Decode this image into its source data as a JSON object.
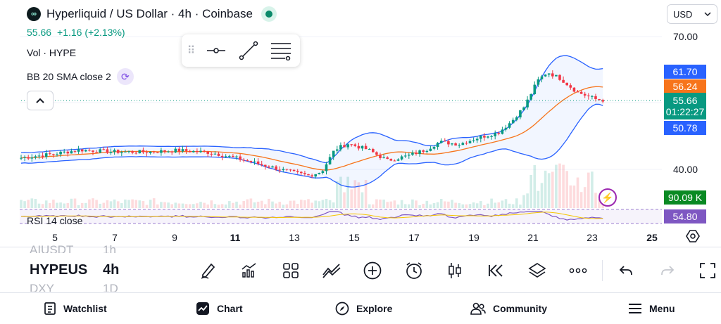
{
  "header": {
    "title": "Hyperliquid / US Dollar · 4h · Coinbase",
    "logo_glyph": "∞",
    "last_price": "55.66",
    "change": "+1.16 (+2.13%)",
    "currency": "USD"
  },
  "legends": {
    "volume": "Vol · HYPE",
    "bollinger": "BB 20 SMA close 2",
    "rsi": "RSI 14 close"
  },
  "price_axis": {
    "labels": [
      "70.00",
      "40.00"
    ],
    "tags": {
      "bb_upper": {
        "value": "61.70",
        "color": "#2962ff"
      },
      "bb_basis": {
        "value": "56.24",
        "color": "#f7741b"
      },
      "last": {
        "value": "55.66",
        "countdown": "01:22:27",
        "color": "#089981"
      },
      "bb_lower": {
        "value": "50.78",
        "color": "#2962ff"
      },
      "volume": {
        "value": "90.09 K",
        "color": "#0a8a23"
      },
      "rsi": {
        "value": "54.80",
        "color": "#7e57c2"
      }
    }
  },
  "date_axis": [
    "5",
    "7",
    "9",
    "11",
    "13",
    "15",
    "17",
    "19",
    "21",
    "23",
    "25"
  ],
  "watchlist": {
    "previous": {
      "symbol": "AIUSDT",
      "interval": "1h"
    },
    "current": {
      "symbol": "HYPEUS",
      "interval": "4h"
    },
    "next": {
      "symbol": "DXY",
      "interval": "1D"
    }
  },
  "toolbar_icons": [
    "pencil-icon",
    "indicators-icon",
    "layouts-icon",
    "compare-icon",
    "add-icon",
    "alert-clock-icon",
    "candle-type-icon",
    "replay-icon",
    "layers-icon",
    "more-icon",
    "undo-icon",
    "redo-icon",
    "fullscreen-icon"
  ],
  "bottom_nav": [
    {
      "label": "Watchlist",
      "icon": "watchlist-icon"
    },
    {
      "label": "Chart",
      "icon": "chart-icon"
    },
    {
      "label": "Explore",
      "icon": "compass-icon"
    },
    {
      "label": "Community",
      "icon": "community-icon"
    },
    {
      "label": "Menu",
      "icon": "menu-icon"
    }
  ],
  "colors": {
    "up": "#089981",
    "down": "#f23645",
    "bb_band": "#2962ff",
    "bb_basis": "#f7741b",
    "rsi_line": "#7e57c2"
  }
}
